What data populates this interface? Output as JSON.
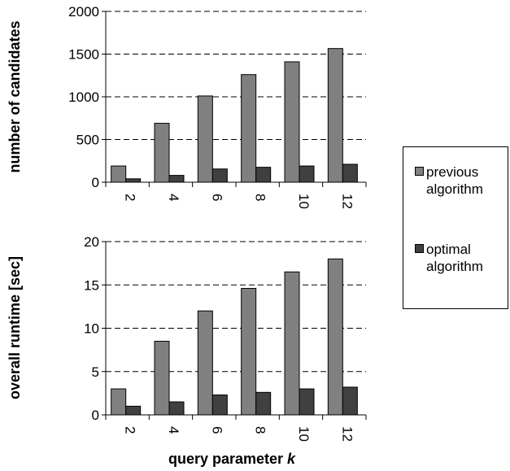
{
  "chart_data": [
    {
      "type": "bar",
      "ylabel": "number of candidates",
      "xlabel": "",
      "categories": [
        "2",
        "4",
        "6",
        "8",
        "10",
        "12"
      ],
      "ylim": [
        0,
        2000
      ],
      "yticks": [
        0,
        500,
        1000,
        1500,
        2000
      ],
      "grid": "horizontal dashed",
      "series": [
        {
          "name": "previous algorithm",
          "color": "#808080",
          "values": [
            190,
            690,
            1010,
            1260,
            1410,
            1565
          ]
        },
        {
          "name": "optimal algorithm",
          "color": "#404040",
          "values": [
            40,
            80,
            155,
            175,
            190,
            210
          ]
        }
      ]
    },
    {
      "type": "bar",
      "ylabel": "overall runtime [sec]",
      "xlabel": "query parameter k",
      "categories": [
        "2",
        "4",
        "6",
        "8",
        "10",
        "12"
      ],
      "ylim": [
        0,
        20
      ],
      "yticks": [
        0,
        5,
        10,
        15,
        20
      ],
      "grid": "horizontal dashed",
      "series": [
        {
          "name": "previous algorithm",
          "color": "#808080",
          "values": [
            3.0,
            8.5,
            12.0,
            14.6,
            16.5,
            18.0
          ]
        },
        {
          "name": "optimal algorithm",
          "color": "#404040",
          "values": [
            1.0,
            1.5,
            2.3,
            2.6,
            3.0,
            3.2
          ]
        }
      ]
    }
  ],
  "legend": {
    "placement": "right",
    "items": [
      {
        "line1": "previous",
        "line2": "algorithm",
        "color": "#808080"
      },
      {
        "line1": "optimal",
        "line2": "algorithm",
        "color": "#404040"
      }
    ]
  },
  "xlabel_main": "query parameter ",
  "xlabel_var": "k"
}
